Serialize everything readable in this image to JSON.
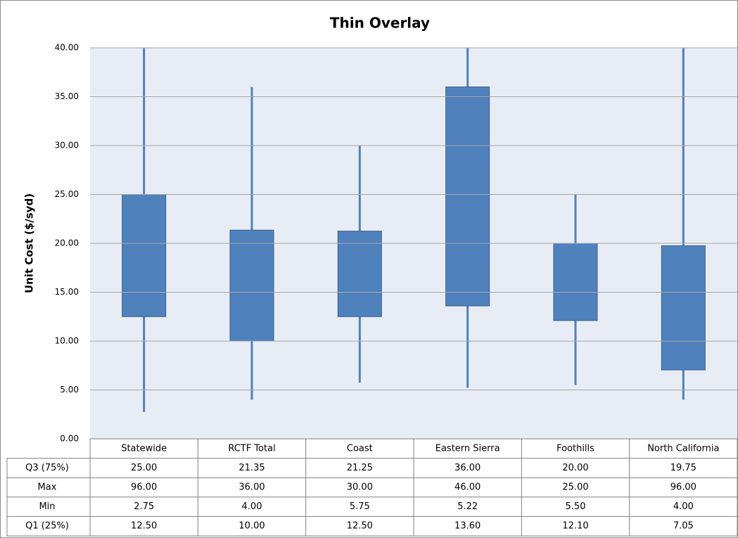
{
  "chart_data": {
    "type": "box",
    "title": "Thin Overlay",
    "y_label": "Unit Cost ($/syd)",
    "categories": [
      "Statewide",
      "RCTF Total",
      "Coast",
      "Eastern Sierra",
      "Foothills",
      "North California"
    ],
    "series": [
      {
        "name": "Q3 (75%)",
        "values": [
          25,
          21.35,
          21.25,
          36,
          20,
          19.75
        ],
        "value_labels": [
          "25.00",
          "21.35",
          "21.25",
          "36.00",
          "20.00",
          "19.75"
        ]
      },
      {
        "name": "Max",
        "values": [
          96,
          36,
          30,
          46,
          25,
          96
        ],
        "value_labels": [
          "96.00",
          "36.00",
          "30.00",
          "46.00",
          "25.00",
          "96.00"
        ]
      },
      {
        "name": "Min",
        "values": [
          2.75,
          4,
          5.75,
          5.22,
          5.5,
          4
        ],
        "value_labels": [
          "2.75",
          "4.00",
          "5.75",
          "5.22",
          "5.50",
          "4.00"
        ]
      },
      {
        "name": "Q1 (25%)",
        "values": [
          12.5,
          10,
          12.5,
          13.6,
          12.1,
          7.05
        ],
        "value_labels": [
          "12.50",
          "10.00",
          "12.50",
          "13.60",
          "12.10",
          "7.05"
        ]
      }
    ],
    "color": "#4f81bd",
    "ylim": [
      0,
      40
    ],
    "yticks": [
      {
        "value": 0,
        "label": "0.00"
      },
      {
        "value": 5,
        "label": "5.00"
      },
      {
        "value": 10,
        "label": "10.00"
      },
      {
        "value": 15,
        "label": "15.00"
      },
      {
        "value": 20,
        "label": "20.00"
      },
      {
        "value": 25,
        "label": "25.00"
      },
      {
        "value": 30,
        "label": "30.00"
      },
      {
        "value": 35,
        "label": "35.00"
      },
      {
        "value": 40,
        "label": "40.00"
      }
    ],
    "grid": true
  }
}
